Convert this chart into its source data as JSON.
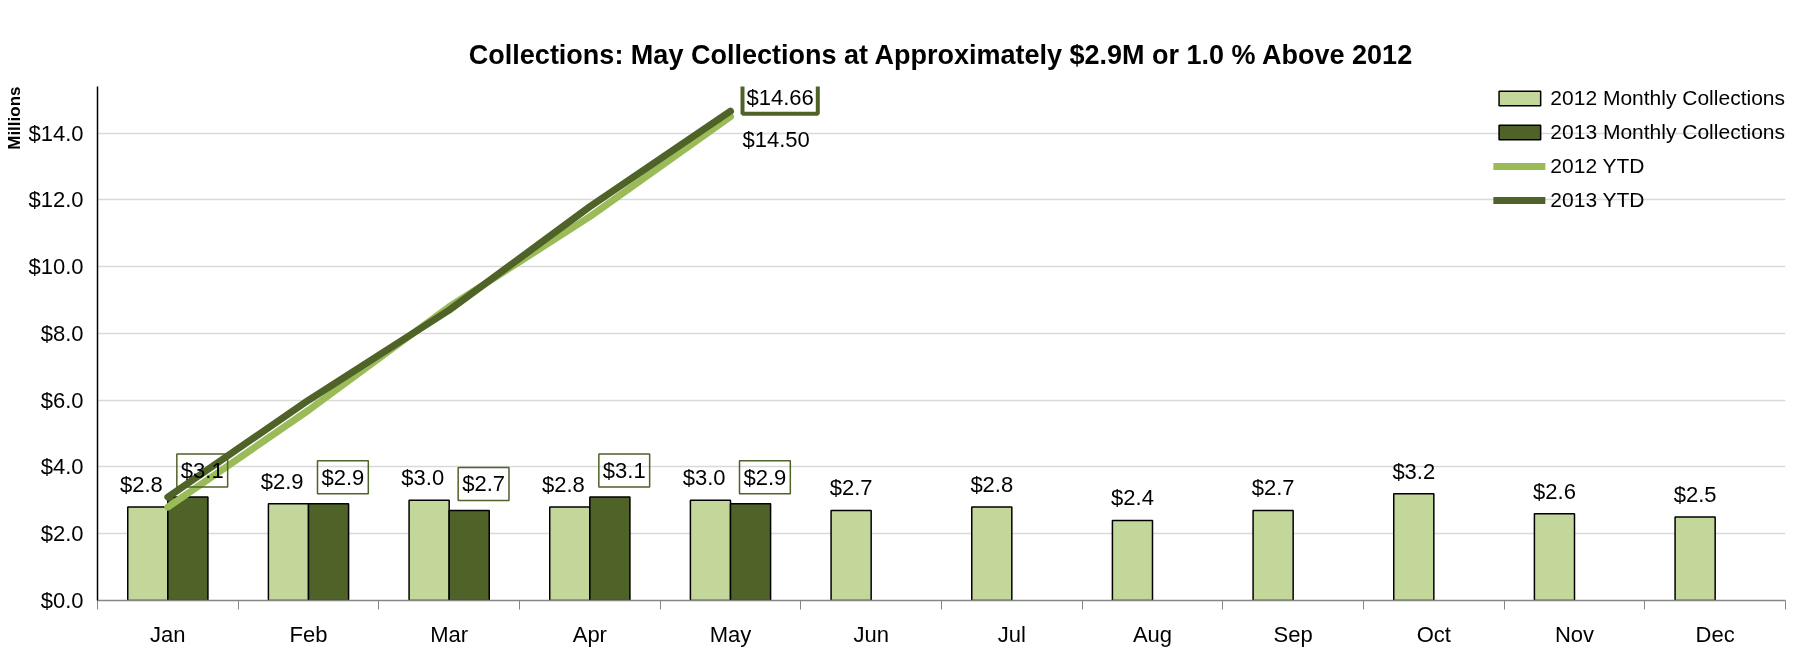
{
  "chart_data": {
    "type": "bar",
    "title": "Collections: May Collections at Approximately $2.9M or 1.0 % Above 2012",
    "ylabel": "Millions",
    "categories": [
      "Jan",
      "Feb",
      "Mar",
      "Apr",
      "May",
      "Jun",
      "Jul",
      "Aug",
      "Sep",
      "Oct",
      "Nov",
      "Dec"
    ],
    "series": [
      {
        "name": "2012 Monthly Collections",
        "color": "#c4d79b",
        "values": [
          2.8,
          2.9,
          3.0,
          2.8,
          3.0,
          2.7,
          2.8,
          2.4,
          2.7,
          3.2,
          2.6,
          2.5
        ],
        "value_labels": [
          "$2.8",
          "$2.9",
          "$3.0",
          "$2.8",
          "$3.0",
          "$2.7",
          "$2.8",
          "$2.4",
          "$2.7",
          "$3.2",
          "$2.6",
          "$2.5"
        ]
      },
      {
        "name": "2013 Monthly Collections",
        "color": "#4f6228",
        "values": [
          3.1,
          2.9,
          2.7,
          3.1,
          2.9,
          null,
          null,
          null,
          null,
          null,
          null,
          null
        ],
        "value_labels": [
          "$3.1",
          "$2.9",
          "$2.7",
          "$3.1",
          "$2.9",
          null,
          null,
          null,
          null,
          null,
          null,
          null
        ]
      },
      {
        "name": "2012 YTD",
        "type": "line",
        "color": "#9bbb59",
        "values": [
          2.8,
          5.7,
          8.8,
          11.5,
          14.5,
          null,
          null,
          null,
          null,
          null,
          null,
          null
        ],
        "value_labels": [
          null,
          null,
          null,
          null,
          "$14.50",
          null,
          null,
          null,
          null,
          null,
          null,
          null
        ]
      },
      {
        "name": "2013 YTD",
        "type": "line",
        "color": "#4f6228",
        "values": [
          3.1,
          6.0,
          8.7,
          11.8,
          14.66,
          null,
          null,
          null,
          null,
          null,
          null,
          null
        ],
        "value_labels": [
          null,
          null,
          null,
          null,
          "$14.66",
          null,
          null,
          null,
          null,
          null,
          null,
          null
        ]
      }
    ],
    "ylim": [
      0,
      15.4
    ],
    "yticks": [
      {
        "value": 0,
        "label": "$0.0"
      },
      {
        "value": 2,
        "label": "$2.0"
      },
      {
        "value": 4,
        "label": "$4.0"
      },
      {
        "value": 6,
        "label": "$6.0"
      },
      {
        "value": 8,
        "label": "$8.0"
      },
      {
        "value": 10,
        "label": "$10.0"
      },
      {
        "value": 12,
        "label": "$12.0"
      },
      {
        "value": 14,
        "label": "$14.0"
      }
    ],
    "grid": "y",
    "legend": "top right"
  }
}
